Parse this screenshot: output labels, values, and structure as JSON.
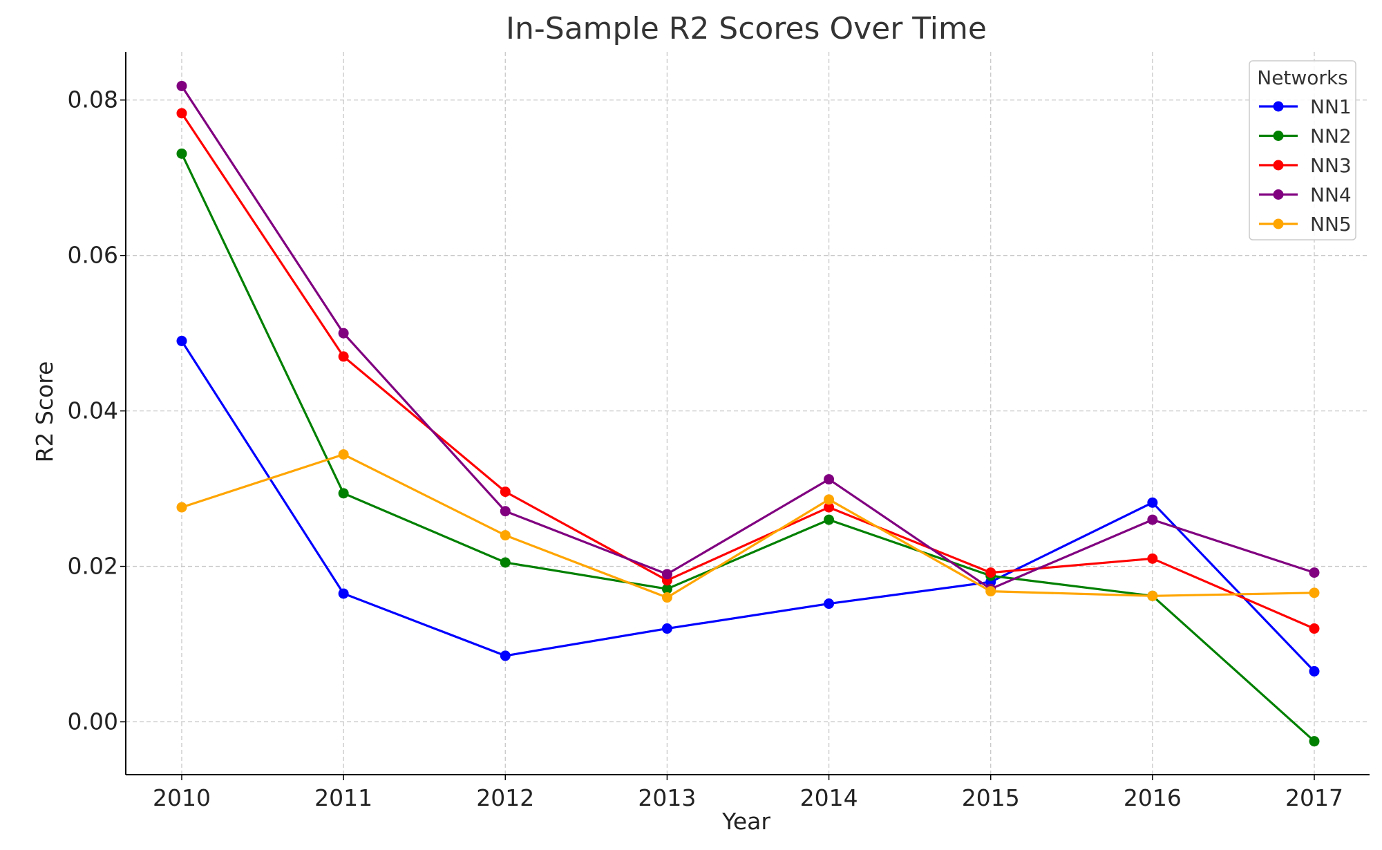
{
  "chart_data": {
    "type": "line",
    "title": "In-Sample R2 Scores Over Time",
    "xlabel": "Year",
    "ylabel": "R2 Score",
    "categories": [
      "2010",
      "2011",
      "2012",
      "2013",
      "2014",
      "2015",
      "2016",
      "2017"
    ],
    "ylim": [
      -0.0068,
      0.0862
    ],
    "yticks": [
      "0.00",
      "0.02",
      "0.04",
      "0.06",
      "0.08"
    ],
    "ytick_values": [
      0.0,
      0.02,
      0.04,
      0.06,
      0.08
    ],
    "grid": true,
    "legend_title": "Networks",
    "legend_position": "top-right",
    "series": [
      {
        "name": "NN1",
        "color": "#0000ff",
        "values": [
          0.049,
          0.0165,
          0.0085,
          0.012,
          0.0152,
          0.018,
          0.0282,
          0.0065
        ]
      },
      {
        "name": "NN2",
        "color": "#008000",
        "values": [
          0.0731,
          0.0294,
          0.0205,
          0.0171,
          0.026,
          0.0188,
          0.0162,
          -0.0025
        ]
      },
      {
        "name": "NN3",
        "color": "#ff0000",
        "values": [
          0.0783,
          0.047,
          0.0296,
          0.0182,
          0.0276,
          0.0192,
          0.021,
          0.012
        ]
      },
      {
        "name": "NN4",
        "color": "#800080",
        "values": [
          0.0818,
          0.05,
          0.0271,
          0.019,
          0.0312,
          0.0171,
          0.026,
          0.0192
        ]
      },
      {
        "name": "NN5",
        "color": "#ffa500",
        "values": [
          0.0276,
          0.0344,
          0.024,
          0.016,
          0.0286,
          0.0168,
          0.0162,
          0.0166
        ]
      }
    ]
  }
}
